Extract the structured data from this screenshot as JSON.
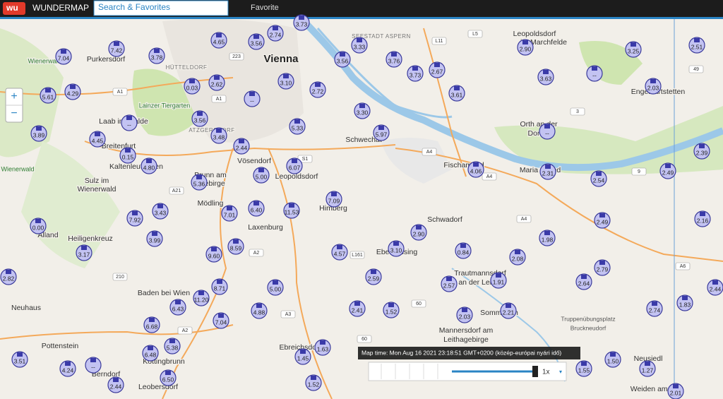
{
  "header": {
    "brand": "WUNDERMAP",
    "search_placeholder": "Search & Favorites",
    "nav": [
      "Favorite"
    ]
  },
  "zoom": {
    "zoom_in": "+",
    "zoom_out": "−"
  },
  "places": [
    "Vienna",
    "Purkersdorf",
    "HÜTTELDORF",
    "SEESTADT ASPERN",
    "Leopoldsdorf",
    "im Marchfelde",
    "Lainzer Tiergarten",
    "ATZGERSDORF",
    "Laab im Walde",
    "Breitenfurt",
    "Kaltenleutgeben",
    "Wienerwald",
    "Wienerwald",
    "Sulz im",
    "Wienerwald",
    "Alland",
    "Heiligenkreuz",
    "Mödling",
    "Laxenburg",
    "Brunn am",
    "Gebirge",
    "Vösendorf",
    "Leopoldsdorf",
    "Himberg",
    "Schwechat",
    "Fischamend",
    "Schwadorf",
    "Ebergassing",
    "Trautmannsdorf",
    "an der Leitha",
    "Mannersdorf am",
    "Leithagebirge",
    "Sommerein",
    "Orth an der",
    "Donau",
    "Engelhartstetten",
    "Truppenübungsplatz",
    "Bruckneudorf",
    "Baden bei Wien",
    "Neuhaus",
    "Pottenstein",
    "Kottingbrunn",
    "Berndorf",
    "Leobersdorf",
    "Ebreichsdorf",
    "Neusiedl",
    "Weiden am See",
    "Maria Ellend"
  ],
  "roads": [
    "A1",
    "A1",
    "A21",
    "A2",
    "A2",
    "A3",
    "A4",
    "A4",
    "A4",
    "A6",
    "L161",
    "L11",
    "L5",
    "S1",
    "60",
    "60",
    "210",
    "223",
    "3",
    "49",
    "9"
  ],
  "stations": [
    "7.04",
    "7.42",
    "3.78",
    "4.65",
    "3.56",
    "2.74",
    "3.73",
    "3.33",
    "3.56",
    "3.76",
    "3.73",
    "2.67",
    "2.90",
    "3.25",
    "2.51",
    "5.61",
    "4.29",
    "0.03",
    "2.62",
    "--",
    "3.10",
    "2.72",
    "3.63",
    "--",
    "2.03",
    "3.61",
    "3.30",
    "3.89",
    "4.45",
    "--",
    "3.56",
    "3.48",
    "2.44",
    "5.33",
    "5.97",
    "--",
    "0.15",
    "4.80",
    "2.39",
    "5.36",
    "5.00",
    "6.07",
    "4.06",
    "2.31",
    "2.54",
    "2.49",
    "3.43",
    "7.92",
    "7.01",
    "6.40",
    "11.53",
    "7.09",
    "0.00",
    "3.99",
    "2.90",
    "2.49",
    "2.16",
    "3.17",
    "9.60",
    "8.59",
    "4.57",
    "3.10",
    "0.84",
    "2.08",
    "1.98",
    "2.79",
    "2.82",
    "2.59",
    "2.57",
    "1.91",
    "2.64",
    "8.71",
    "5.00",
    "11.20",
    "6.43",
    "4.88",
    "2.41",
    "1.52",
    "2.03",
    "2.21",
    "2.74",
    "1.83",
    "2.44",
    "7.04",
    "6.68",
    "5.38",
    "6.48",
    "1.63",
    "1.45",
    "3.51",
    "4.24",
    "--",
    "6.50",
    "2.44",
    "1.52",
    "1.55",
    "1.50",
    "1.27",
    "2.01"
  ],
  "timebar": {
    "label": "Map time: Mon Aug 16 2021 23:18:51 GMT+0200 (közép-európai nyári idő)",
    "speed": "1x"
  }
}
